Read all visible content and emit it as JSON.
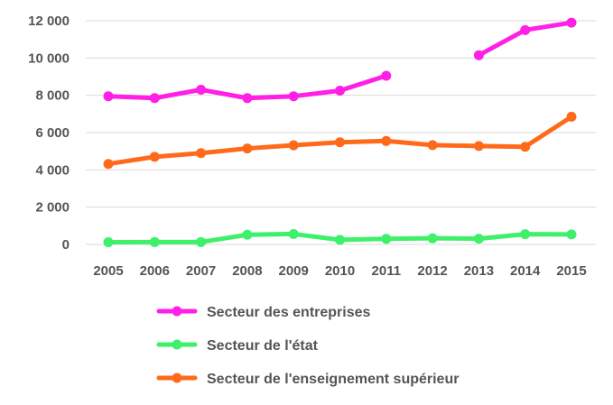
{
  "chart_data": {
    "type": "line",
    "title": "",
    "xlabel": "",
    "ylabel": "",
    "x": [
      "2005",
      "2006",
      "2007",
      "2008",
      "2009",
      "2010",
      "2011",
      "2012",
      "2013",
      "2014",
      "2015"
    ],
    "y_ticks": [
      "0",
      "2 000",
      "4 000",
      "6 000",
      "8 000",
      "10 000",
      "12 000"
    ],
    "y_tick_values": [
      0,
      2000,
      4000,
      6000,
      8000,
      10000,
      12000
    ],
    "ylim": [
      0,
      12000
    ],
    "grid": true,
    "legend_position": "bottom",
    "series": [
      {
        "name": "Secteur des entreprises",
        "color": "#ff1fe6",
        "values": [
          7950,
          7850,
          8300,
          7850,
          7950,
          8250,
          9050,
          null,
          10150,
          11500,
          11900
        ]
      },
      {
        "name": "Secteur de l'état",
        "color": "#3ef06a",
        "values": [
          120,
          130,
          130,
          520,
          560,
          250,
          300,
          330,
          310,
          550,
          540
        ]
      },
      {
        "name": "Secteur de l'enseignement supérieur",
        "color": "#ff6a1a",
        "values": [
          4320,
          4700,
          4900,
          5150,
          5320,
          5480,
          5550,
          5330,
          5280,
          5240,
          6850
        ]
      }
    ]
  }
}
